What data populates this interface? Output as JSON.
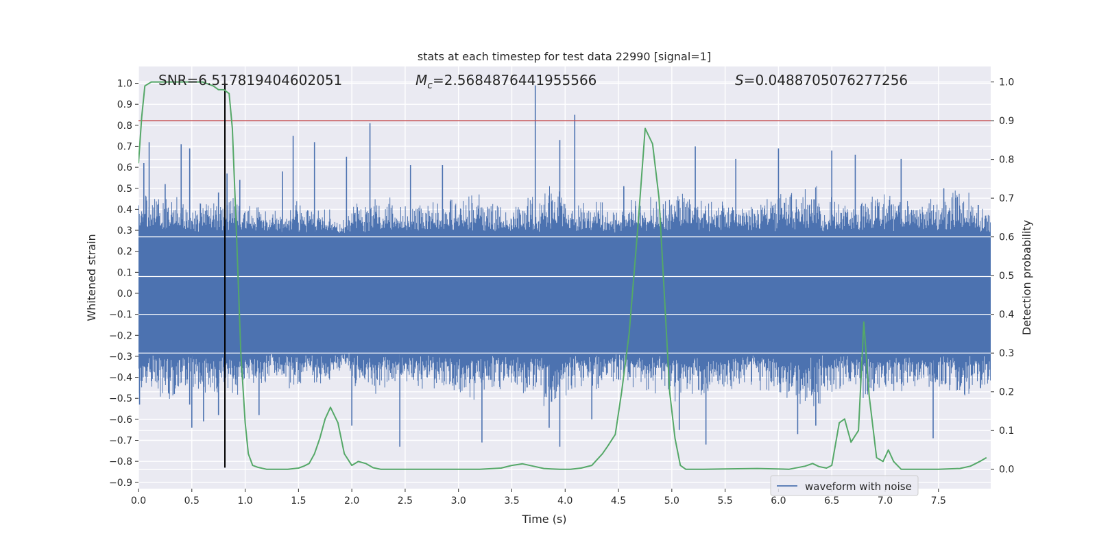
{
  "chart_data": {
    "type": "line",
    "title": "stats at each timestep for test data 22990 [signal=1]",
    "xlabel": "Time (s)",
    "ylabel": "Whitened strain",
    "y2label": "Detection probability",
    "xlim": [
      0.0,
      7.99
    ],
    "ylim": [
      -0.93,
      1.08
    ],
    "y2lim": [
      -0.05,
      1.04
    ],
    "xticks": [
      0.0,
      0.5,
      1.0,
      1.5,
      2.0,
      2.5,
      3.0,
      3.5,
      4.0,
      4.5,
      5.0,
      5.5,
      6.0,
      6.5,
      7.0,
      7.5
    ],
    "xtick_labels": [
      "0.0",
      "0.5",
      "1.0",
      "1.5",
      "2.0",
      "2.5",
      "3.0",
      "3.5",
      "4.0",
      "4.5",
      "5.0",
      "5.5",
      "6.0",
      "6.5",
      "7.0",
      "7.5"
    ],
    "yticks": [
      1.0,
      0.9,
      0.8,
      0.7,
      0.6,
      0.5,
      0.4,
      0.3,
      0.2,
      0.1,
      0.0,
      -0.1,
      -0.2,
      -0.3,
      -0.4,
      -0.5,
      -0.6,
      -0.7,
      -0.8,
      -0.9
    ],
    "ytick_labels": [
      "1.0",
      "0.9",
      "0.8",
      "0.7",
      "0.6",
      "0.5",
      "0.4",
      "0.3",
      "0.2",
      "0.1",
      "0.0",
      "−0.1",
      "−0.2",
      "−0.3",
      "−0.4",
      "−0.5",
      "−0.6",
      "−0.7",
      "−0.8",
      "−0.9"
    ],
    "y2ticks": [
      1.0,
      0.9,
      0.8,
      0.7,
      0.6,
      0.5,
      0.4,
      0.3,
      0.2,
      0.1,
      0.0
    ],
    "y2tick_labels": [
      "1.0",
      "0.9",
      "0.8",
      "0.7",
      "0.6",
      "0.5",
      "0.4",
      "0.3",
      "0.2",
      "0.1",
      "0.0"
    ],
    "grid": true,
    "legend": {
      "entries": [
        "waveform with noise"
      ],
      "placement": "lower-right"
    },
    "annotations": {
      "snr": "SNR=6.517819404602051",
      "mc_symbol": "M",
      "mc_subscript": "c",
      "mc_value": "=2.5684876441955566",
      "s_symbol": "S",
      "s_value": "=0.0488705076277256"
    },
    "threshold": {
      "value": 0.9,
      "axis": "right",
      "color": "#c44e52"
    },
    "vline": {
      "x": 0.81,
      "ymin": -0.83,
      "ymax": 1.0,
      "color": "#000000"
    },
    "colors": {
      "background": "#eaeaf2",
      "grid": "#ffffff",
      "waveform": "#4c72b0",
      "probability": "#55a868"
    },
    "series": [
      {
        "name": "waveform with noise",
        "axis": "left",
        "kind": "noise-envelope",
        "band": 0.27,
        "envelope": [
          0.42,
          0.45,
          0.4,
          0.42,
          0.45,
          0.38,
          0.35,
          0.4,
          0.38,
          0.32,
          0.4,
          0.42,
          0.38,
          0.4,
          0.42,
          0.45,
          0.4,
          0.38,
          0.42,
          0.48,
          0.42,
          0.4,
          0.38,
          0.4,
          0.42,
          0.45,
          0.42,
          0.4,
          0.38,
          0.42,
          0.45,
          0.48,
          0.42,
          0.4,
          0.45,
          0.42,
          0.4,
          0.42,
          0.45,
          0.4
        ],
        "peaks": [
          {
            "x": 0.05,
            "y": 0.62
          },
          {
            "x": 0.1,
            "y": 0.72
          },
          {
            "x": 0.25,
            "y": 0.52
          },
          {
            "x": 0.4,
            "y": 0.71
          },
          {
            "x": 0.48,
            "y": 0.69
          },
          {
            "x": 0.75,
            "y": 0.48
          },
          {
            "x": 0.83,
            "y": 0.57
          },
          {
            "x": 0.95,
            "y": 0.54
          },
          {
            "x": 1.35,
            "y": 0.58
          },
          {
            "x": 1.45,
            "y": 0.75
          },
          {
            "x": 1.65,
            "y": 0.72
          },
          {
            "x": 1.95,
            "y": 0.65
          },
          {
            "x": 2.17,
            "y": 0.81
          },
          {
            "x": 2.55,
            "y": 0.61
          },
          {
            "x": 2.85,
            "y": 0.61
          },
          {
            "x": 3.72,
            "y": 0.99
          },
          {
            "x": 3.95,
            "y": 0.73
          },
          {
            "x": 4.09,
            "y": 0.85
          },
          {
            "x": 4.55,
            "y": 0.51
          },
          {
            "x": 5.22,
            "y": 0.7
          },
          {
            "x": 5.6,
            "y": 0.64
          },
          {
            "x": 6.0,
            "y": 0.69
          },
          {
            "x": 6.5,
            "y": 0.68
          },
          {
            "x": 6.72,
            "y": 0.66
          },
          {
            "x": 7.15,
            "y": 0.64
          },
          {
            "x": 7.55,
            "y": 0.5
          }
        ],
        "troughs": [
          {
            "x": 0.01,
            "y": -0.53
          },
          {
            "x": 0.48,
            "y": -0.53
          },
          {
            "x": 0.5,
            "y": -0.64
          },
          {
            "x": 0.61,
            "y": -0.61
          },
          {
            "x": 0.75,
            "y": -0.58
          },
          {
            "x": 1.13,
            "y": -0.58
          },
          {
            "x": 2.0,
            "y": -0.63
          },
          {
            "x": 2.45,
            "y": -0.73
          },
          {
            "x": 3.22,
            "y": -0.71
          },
          {
            "x": 3.85,
            "y": -0.64
          },
          {
            "x": 3.95,
            "y": -0.73
          },
          {
            "x": 4.25,
            "y": -0.6
          },
          {
            "x": 5.07,
            "y": -0.65
          },
          {
            "x": 5.32,
            "y": -0.72
          },
          {
            "x": 6.18,
            "y": -0.67
          },
          {
            "x": 6.35,
            "y": -0.63
          },
          {
            "x": 7.45,
            "y": -0.69
          }
        ]
      },
      {
        "name": "",
        "axis": "right",
        "x": [
          0.0,
          0.03,
          0.06,
          0.12,
          0.2,
          0.3,
          0.4,
          0.5,
          0.6,
          0.7,
          0.75,
          0.8,
          0.85,
          0.88,
          0.92,
          0.96,
          1.0,
          1.03,
          1.07,
          1.12,
          1.2,
          1.4,
          1.5,
          1.55,
          1.6,
          1.65,
          1.7,
          1.75,
          1.8,
          1.87,
          1.93,
          2.0,
          2.06,
          2.13,
          2.2,
          2.27,
          2.5,
          2.8,
          3.0,
          3.2,
          3.4,
          3.5,
          3.55,
          3.6,
          3.7,
          3.8,
          3.87,
          3.95,
          4.05,
          4.15,
          4.25,
          4.35,
          4.4,
          4.47,
          4.53,
          4.6,
          4.68,
          4.75,
          4.82,
          4.88,
          4.93,
          4.98,
          5.03,
          5.08,
          5.13,
          5.2,
          5.3,
          5.5,
          5.8,
          6.1,
          6.25,
          6.32,
          6.38,
          6.45,
          6.5,
          6.57,
          6.62,
          6.68,
          6.75,
          6.8,
          6.85,
          6.92,
          6.98,
          7.03,
          7.08,
          7.15,
          7.22,
          7.3,
          7.5,
          7.7,
          7.8,
          7.85,
          7.9,
          7.95
        ],
        "values": [
          0.79,
          0.91,
          0.99,
          1.0,
          1.0,
          1.0,
          1.0,
          1.0,
          1.0,
          0.99,
          0.98,
          0.98,
          0.97,
          0.88,
          0.6,
          0.3,
          0.12,
          0.04,
          0.01,
          0.005,
          0.0,
          0.0,
          0.003,
          0.008,
          0.015,
          0.04,
          0.08,
          0.13,
          0.16,
          0.12,
          0.04,
          0.01,
          0.02,
          0.015,
          0.004,
          0.0,
          0.0,
          0.0,
          0.0,
          0.0,
          0.003,
          0.01,
          0.012,
          0.014,
          0.008,
          0.002,
          0.001,
          0.0,
          0.0,
          0.003,
          0.01,
          0.04,
          0.06,
          0.09,
          0.2,
          0.35,
          0.62,
          0.88,
          0.84,
          0.7,
          0.45,
          0.2,
          0.08,
          0.01,
          0.0,
          0.0,
          0.0,
          0.001,
          0.002,
          0.0,
          0.008,
          0.015,
          0.007,
          0.003,
          0.01,
          0.12,
          0.13,
          0.07,
          0.1,
          0.38,
          0.19,
          0.03,
          0.02,
          0.05,
          0.02,
          0.0,
          0.0,
          0.0,
          0.0,
          0.002,
          0.008,
          0.015,
          0.022,
          0.03
        ]
      }
    ]
  }
}
